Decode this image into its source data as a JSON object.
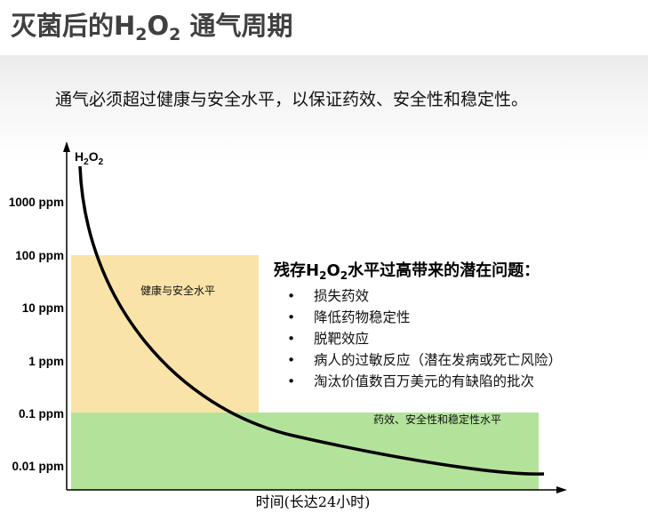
{
  "title": {
    "prefix": "灭菌后的H",
    "sub1": "2",
    "mid": "O",
    "sub2": "2",
    "suffix": " 通气周期"
  },
  "subtitle": "通气必须超过健康与安全水平，以保证药效、安全性和稳定性。",
  "y_axis": {
    "label": {
      "prefix": "H",
      "sub1": "2",
      "mid": "O",
      "sub2": "2"
    },
    "ticks": [
      "1000 ppm",
      "100 ppm",
      "10 ppm",
      "1 ppm",
      "0.1 ppm",
      "0.01 ppm"
    ]
  },
  "x_axis": {
    "label": "时间(长达24小时)"
  },
  "zones": {
    "health_safety": {
      "label": "健康与安全水平",
      "color": "#fae3a8"
    },
    "efficacy": {
      "label": "药效、安全性和稳定性水平",
      "color": "#b3e39a"
    }
  },
  "issues": {
    "heading": {
      "prefix": "残存H",
      "sub1": "2",
      "mid": "O",
      "sub2": "2",
      "suffix": "水平过高带来的潜在问题："
    },
    "bullet": "•",
    "items": [
      "损失药效",
      "降低药物稳定性",
      "脱靶效应",
      "病人的过敏反应（潜在发病或死亡风险）",
      "淘汰价值数百万美元的有缺陷的批次"
    ]
  }
}
